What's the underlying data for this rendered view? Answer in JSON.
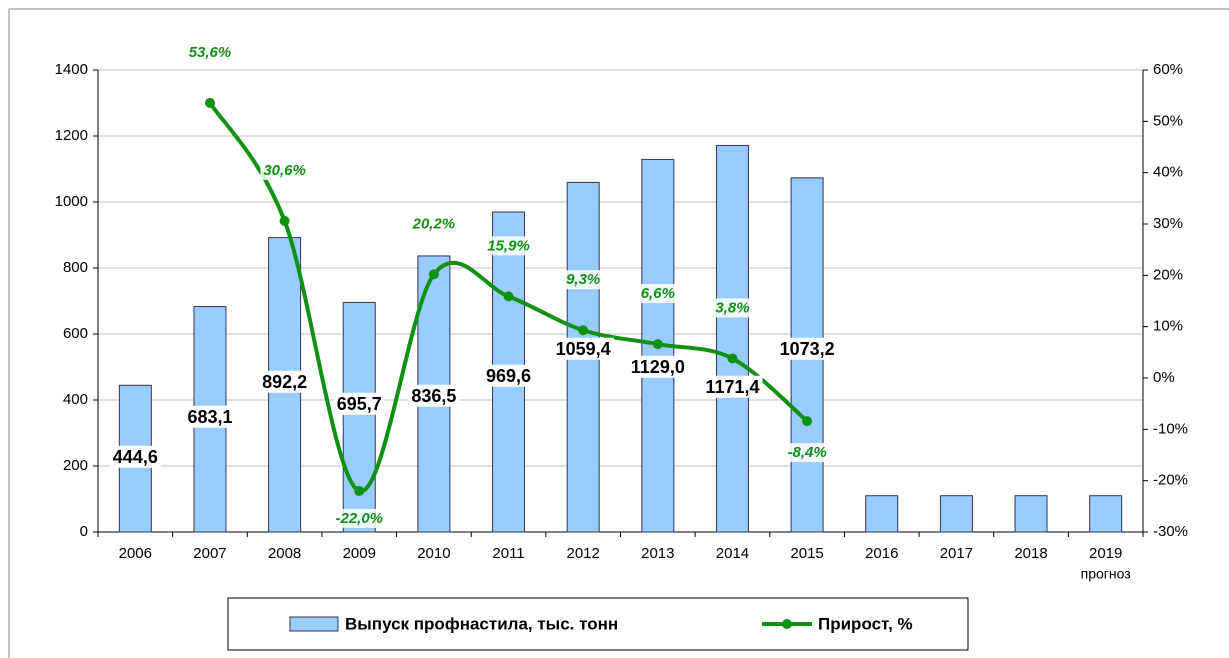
{
  "chart_data": {
    "type": "bar_line",
    "categories": [
      "2006",
      "2007",
      "2008",
      "2009",
      "2010",
      "2011",
      "2012",
      "2013",
      "2014",
      "2015",
      "2016",
      "2017",
      "2018",
      "2019"
    ],
    "forecast_label": "прогноз",
    "series": [
      {
        "name": "Выпуск профнастила, тыс. тонн",
        "type": "bar",
        "color": "#99ccff",
        "values": [
          444.6,
          683.1,
          892.2,
          695.7,
          836.5,
          969.6,
          1059.4,
          1129.0,
          1171.4,
          1073.2,
          110,
          110,
          110,
          110
        ],
        "value_labels": [
          "444,6",
          "683,1",
          "892,2",
          "695,7",
          "836,5",
          "969,6",
          "1059,4",
          "1129,0",
          "1171,4",
          "1073,2",
          null,
          null,
          null,
          null
        ]
      },
      {
        "name": "Прирост, %",
        "type": "line",
        "axis": "y2",
        "color": "#119111",
        "values": [
          null,
          53.6,
          30.6,
          -22.0,
          20.2,
          15.9,
          9.3,
          6.6,
          3.8,
          -8.4,
          null,
          null,
          null,
          null
        ],
        "value_labels": [
          null,
          "53,6%",
          "30,6%",
          "-22,0%",
          "20,2%",
          "15,9%",
          "9,3%",
          "6,6%",
          "3,8%",
          "-8,4%",
          null,
          null,
          null,
          null
        ]
      }
    ],
    "ylim": [
      0,
      1400
    ],
    "yticks": [
      0,
      200,
      400,
      600,
      800,
      1000,
      1200,
      1400
    ],
    "y2lim": [
      -30,
      60
    ],
    "y2ticks": [
      {
        "value": -30,
        "label": "-30%"
      },
      {
        "value": -20,
        "label": "-20%"
      },
      {
        "value": -10,
        "label": "-10%"
      },
      {
        "value": 0,
        "label": "0%"
      },
      {
        "value": 10,
        "label": "10%"
      },
      {
        "value": 20,
        "label": "20%"
      },
      {
        "value": 30,
        "label": "30%"
      },
      {
        "value": 40,
        "label": "40%"
      },
      {
        "value": 50,
        "label": "50%"
      },
      {
        "value": 60,
        "label": "60%"
      }
    ],
    "grid": true,
    "legend": "bottom"
  }
}
